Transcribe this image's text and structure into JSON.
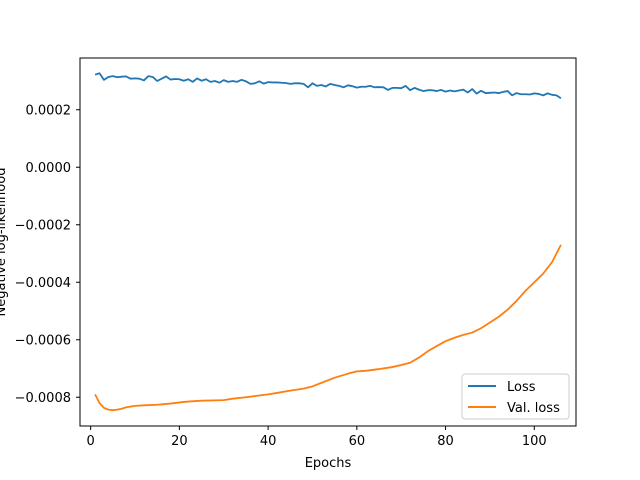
{
  "chart_data": {
    "type": "line",
    "title": "",
    "xlabel": "Epochs",
    "ylabel": "Negative log-likelihood",
    "xlim": [
      -2.4,
      109.4
    ],
    "ylim": [
      -0.0009,
      0.00038
    ],
    "xticks": [
      0,
      20,
      40,
      60,
      80,
      100
    ],
    "xtick_labels": [
      "0",
      "20",
      "40",
      "60",
      "80",
      "100"
    ],
    "yticks": [
      -0.0008,
      -0.0006,
      -0.0004,
      -0.0002,
      0.0,
      0.0002
    ],
    "ytick_labels": [
      "−0.0008",
      "−0.0006",
      "−0.0004",
      "−0.0002",
      "0.0000",
      "0.0002"
    ],
    "grid": false,
    "legend_position": "lower-right",
    "series": [
      {
        "name": "Loss",
        "color": "#1f77b4",
        "x": [
          1,
          2,
          3,
          4,
          5,
          6,
          7,
          8,
          9,
          10,
          11,
          12,
          13,
          14,
          15,
          16,
          17,
          18,
          19,
          20,
          21,
          22,
          23,
          24,
          25,
          26,
          27,
          28,
          29,
          30,
          31,
          32,
          33,
          34,
          35,
          36,
          37,
          38,
          39,
          40,
          41,
          42,
          43,
          44,
          45,
          46,
          47,
          48,
          49,
          50,
          51,
          52,
          53,
          54,
          55,
          56,
          57,
          58,
          59,
          60,
          61,
          62,
          63,
          64,
          65,
          66,
          67,
          68,
          69,
          70,
          71,
          72,
          73,
          74,
          75,
          76,
          77,
          78,
          79,
          80,
          81,
          82,
          83,
          84,
          85,
          86,
          87,
          88,
          89,
          90,
          91,
          92,
          93,
          94,
          95,
          96,
          97,
          98,
          99,
          100,
          101,
          102,
          103,
          104,
          105,
          106
        ],
        "y": [
          0.000322,
          0.000327,
          0.000304,
          0.000314,
          0.000317,
          0.000313,
          0.000315,
          0.000316,
          0.000308,
          0.000309,
          0.000308,
          0.000302,
          0.000317,
          0.000314,
          0.0003,
          0.000308,
          0.000316,
          0.000305,
          0.000307,
          0.000306,
          0.000301,
          0.000306,
          0.000297,
          0.000309,
          0.000301,
          0.000306,
          0.000297,
          0.0003,
          0.000294,
          0.000303,
          0.000297,
          0.0003,
          0.000297,
          0.000304,
          0.000299,
          0.00029,
          0.000292,
          0.000299,
          0.000291,
          0.000296,
          0.000295,
          0.000295,
          0.000294,
          0.000293,
          0.00029,
          0.000292,
          0.000292,
          0.00029,
          0.000278,
          0.000292,
          0.000283,
          0.000286,
          0.000281,
          0.00029,
          0.000286,
          0.000283,
          0.000278,
          0.000285,
          0.000282,
          0.000277,
          0.00028,
          0.00028,
          0.000283,
          0.000278,
          0.000279,
          0.000278,
          0.000269,
          0.000276,
          0.000276,
          0.000275,
          0.000283,
          0.000268,
          0.000276,
          0.00027,
          0.000265,
          0.000268,
          0.000268,
          0.000265,
          0.000269,
          0.000263,
          0.000267,
          0.000264,
          0.000267,
          0.00027,
          0.00026,
          0.000272,
          0.000256,
          0.000266,
          0.000258,
          0.000259,
          0.00026,
          0.000258,
          0.000262,
          0.000265,
          0.00025,
          0.000258,
          0.000254,
          0.000254,
          0.000253,
          0.000257,
          0.000255,
          0.00025,
          0.000257,
          0.000252,
          0.00025,
          0.00024
        ]
      },
      {
        "name": "Val. loss",
        "color": "#ff7f0e",
        "x": [
          1,
          2,
          3,
          4,
          5,
          6,
          7,
          8,
          10,
          12,
          15,
          18,
          20,
          22,
          25,
          28,
          30,
          32,
          35,
          38,
          40,
          42,
          45,
          48,
          50,
          52,
          55,
          58,
          60,
          62,
          65,
          68,
          70,
          72,
          74,
          76,
          78,
          80,
          82,
          84,
          86,
          88,
          90,
          92,
          94,
          96,
          98,
          100,
          102,
          104,
          106
        ],
        "y": [
          -0.00079,
          -0.00082,
          -0.000837,
          -0.000843,
          -0.000845,
          -0.000843,
          -0.00084,
          -0.000835,
          -0.00083,
          -0.000828,
          -0.000826,
          -0.000822,
          -0.000818,
          -0.000815,
          -0.000812,
          -0.000811,
          -0.00081,
          -0.000805,
          -0.0008,
          -0.000794,
          -0.00079,
          -0.000785,
          -0.000777,
          -0.00077,
          -0.000762,
          -0.00075,
          -0.000732,
          -0.000718,
          -0.00071,
          -0.000708,
          -0.000702,
          -0.000695,
          -0.000688,
          -0.00068,
          -0.000662,
          -0.00064,
          -0.000622,
          -0.000605,
          -0.000593,
          -0.000583,
          -0.000575,
          -0.00056,
          -0.00054,
          -0.00052,
          -0.000495,
          -0.000465,
          -0.00043,
          -0.0004,
          -0.00037,
          -0.00033,
          -0.00027
        ]
      }
    ]
  }
}
